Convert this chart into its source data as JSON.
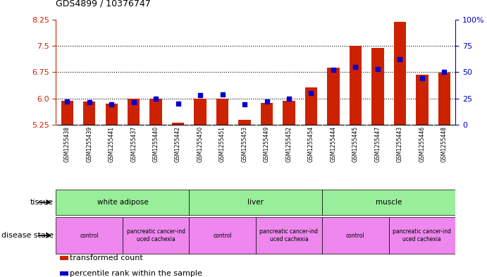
{
  "title": "GDS4899 / 10376747",
  "samples": [
    "GSM1255438",
    "GSM1255439",
    "GSM1255441",
    "GSM1255437",
    "GSM1255440",
    "GSM1255442",
    "GSM1255450",
    "GSM1255451",
    "GSM1255453",
    "GSM1255449",
    "GSM1255452",
    "GSM1255454",
    "GSM1255444",
    "GSM1255445",
    "GSM1255447",
    "GSM1255443",
    "GSM1255446",
    "GSM1255448"
  ],
  "bar_values": [
    5.92,
    5.91,
    5.84,
    6.0,
    5.99,
    5.3,
    6.0,
    6.0,
    5.38,
    5.87,
    5.92,
    6.32,
    6.88,
    7.5,
    7.44,
    8.17,
    6.67,
    6.73
  ],
  "blue_values": [
    22,
    21,
    19,
    21,
    25,
    20,
    28,
    29,
    19,
    22,
    25,
    30,
    52,
    55,
    53,
    62,
    44,
    50
  ],
  "ylim_left": [
    5.25,
    8.25
  ],
  "ylim_right": [
    0,
    100
  ],
  "yticks_left": [
    5.25,
    6.0,
    6.75,
    7.5,
    8.25
  ],
  "yticks_right": [
    0,
    25,
    50,
    75,
    100
  ],
  "hlines": [
    6.0,
    6.75,
    7.5
  ],
  "bar_color": "#cc2200",
  "blue_color": "#0000cc",
  "bar_bottom": 5.25,
  "tissue_groups": [
    {
      "label": "white adipose",
      "start": 0,
      "end": 6
    },
    {
      "label": "liver",
      "start": 6,
      "end": 12
    },
    {
      "label": "muscle",
      "start": 12,
      "end": 18
    }
  ],
  "disease_groups": [
    {
      "label": "control",
      "start": 0,
      "end": 3
    },
    {
      "label": "pancreatic cancer-ind\nuced cachexia",
      "start": 3,
      "end": 6
    },
    {
      "label": "control",
      "start": 6,
      "end": 9
    },
    {
      "label": "pancreatic cancer-ind\nuced cachexia",
      "start": 9,
      "end": 12
    },
    {
      "label": "control",
      "start": 12,
      "end": 15
    },
    {
      "label": "pancreatic cancer-ind\nuced cachexia",
      "start": 15,
      "end": 18
    }
  ],
  "tissue_facecolor": "#99ee99",
  "disease_facecolor": "#ee88ee",
  "xlabel_bg_color": "#cccccc",
  "legend_bar_label": "transformed count",
  "legend_blue_label": "percentile rank within the sample",
  "tissue_row_label": "tissue",
  "disease_row_label": "disease state",
  "bar_color_label": "#cc2200",
  "blue_color_label": "#0000cc"
}
